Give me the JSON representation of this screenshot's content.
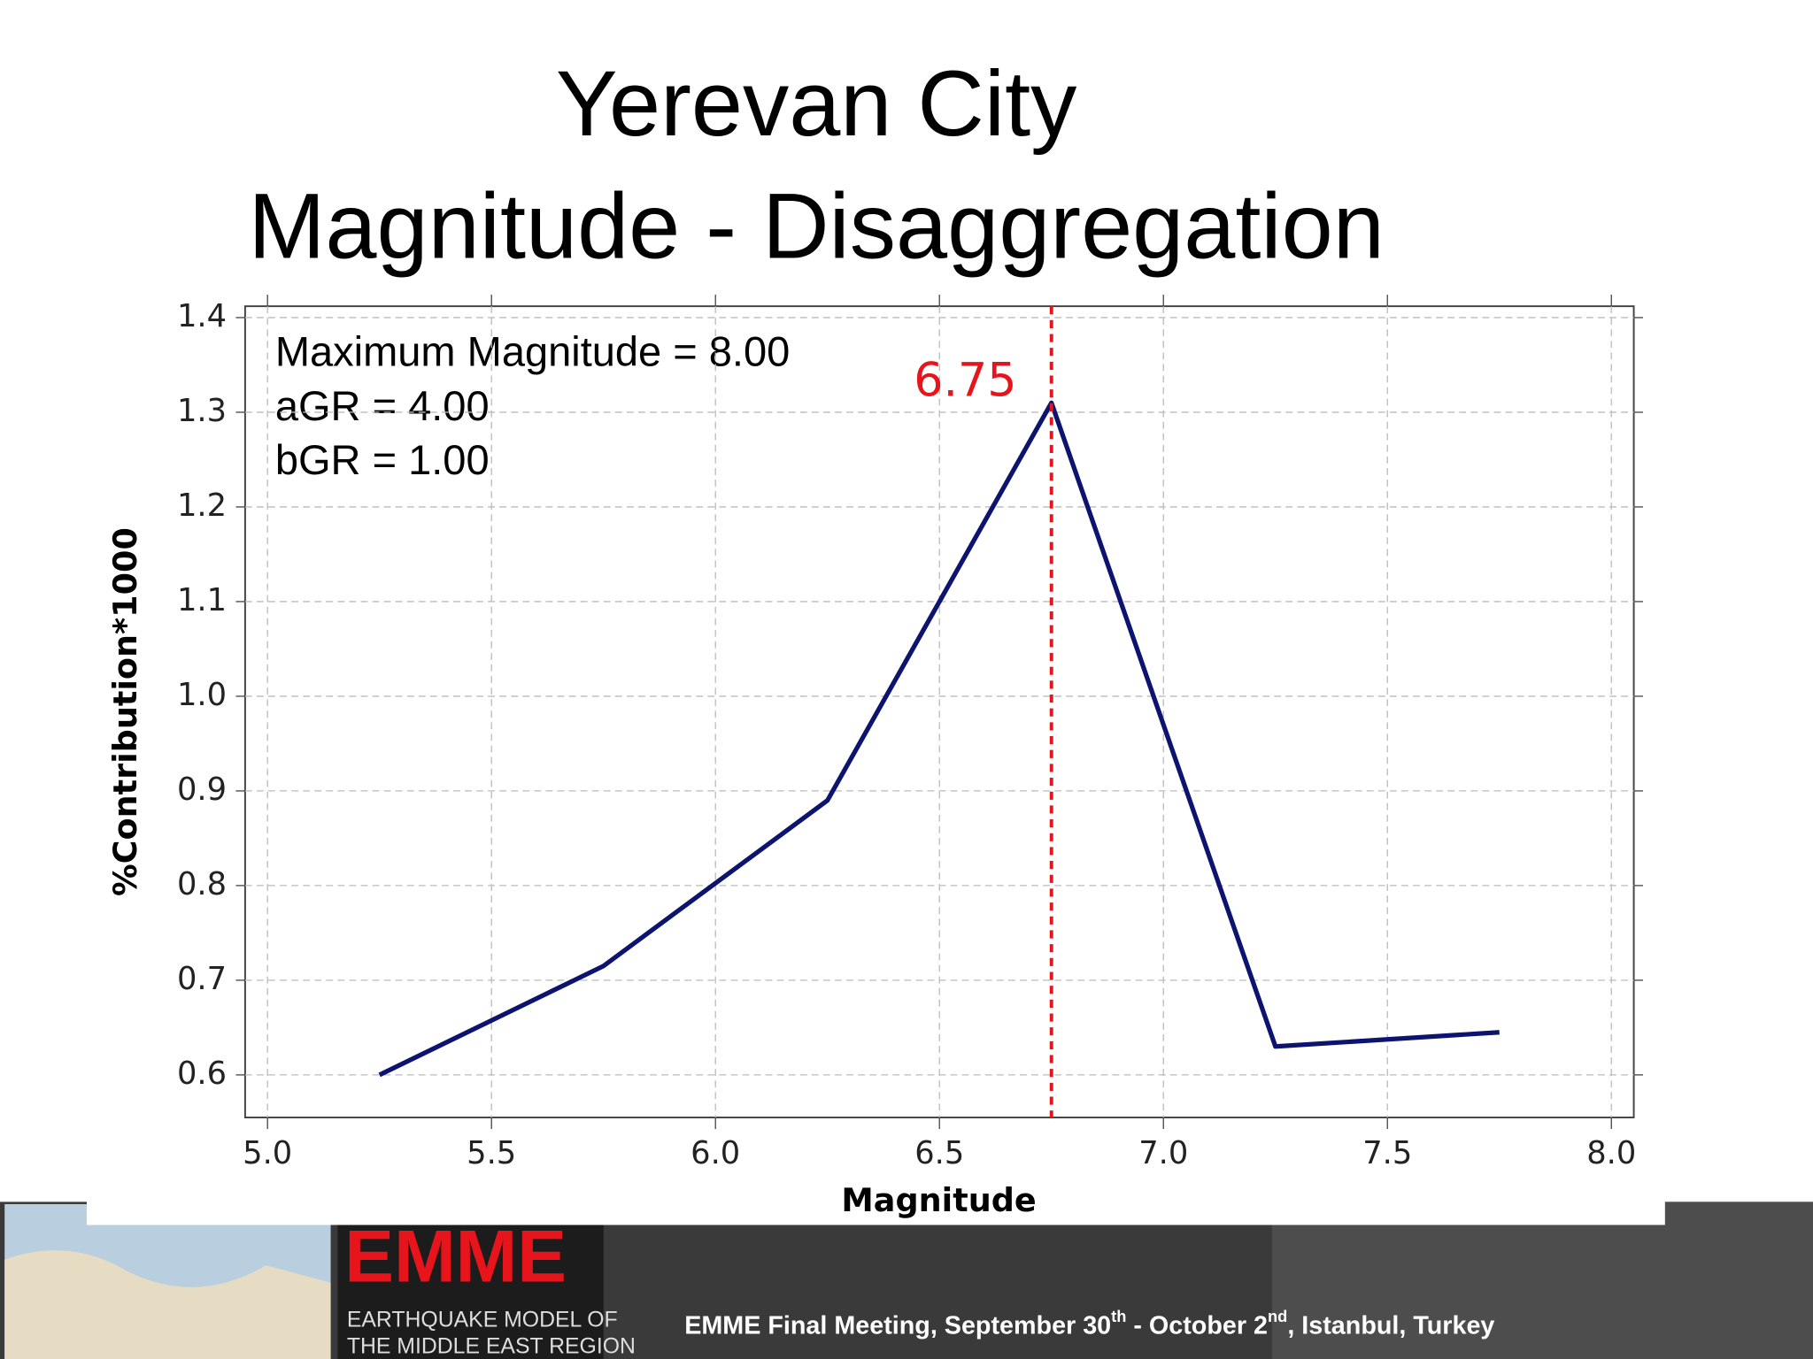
{
  "chart_data": {
    "type": "line",
    "title": [
      "Yerevan City",
      "Magnitude - Disaggregation"
    ],
    "x_label": "Magnitude",
    "y_label": "%Contribution*1000",
    "annotations": [
      "Maximum Magnitude = 8.00",
      "aGR = 4.00",
      "bGR = 1.00"
    ],
    "marker": {
      "value": 6.75,
      "label": "6.75",
      "color": "#e8141c"
    },
    "x": [
      5.25,
      5.75,
      6.25,
      6.75,
      7.25,
      7.75
    ],
    "series": [
      {
        "color": "#0d1470",
        "values": [
          0.6,
          0.715,
          0.89,
          1.31,
          0.63,
          0.645
        ]
      }
    ],
    "xlim": [
      4.95,
      8.05
    ],
    "xticks": [
      {
        "value": 5,
        "label": "5.0"
      },
      5.5,
      {
        "value": 6,
        "label": "6.0"
      },
      6.5,
      {
        "value": 7,
        "label": "7.0"
      },
      7.5,
      {
        "value": 8,
        "label": "8.0"
      }
    ],
    "ylim": [
      0.555,
      1.412
    ],
    "yticks": [
      0.6,
      0.7,
      0.8,
      0.9,
      {
        "value": 1,
        "label": "1.0"
      },
      1.1,
      1.2,
      1.3,
      1.4
    ],
    "grid": true
  },
  "footer": {
    "logo": "EMME",
    "logo_lines": [
      "EARTHQUAKE MODEL OF",
      "THE MIDDLE EAST REGION"
    ],
    "meeting": [
      "EMME Final Meeting, September 30",
      "th",
      " - October 2",
      "nd",
      ", Istanbul, Turkey"
    ]
  }
}
